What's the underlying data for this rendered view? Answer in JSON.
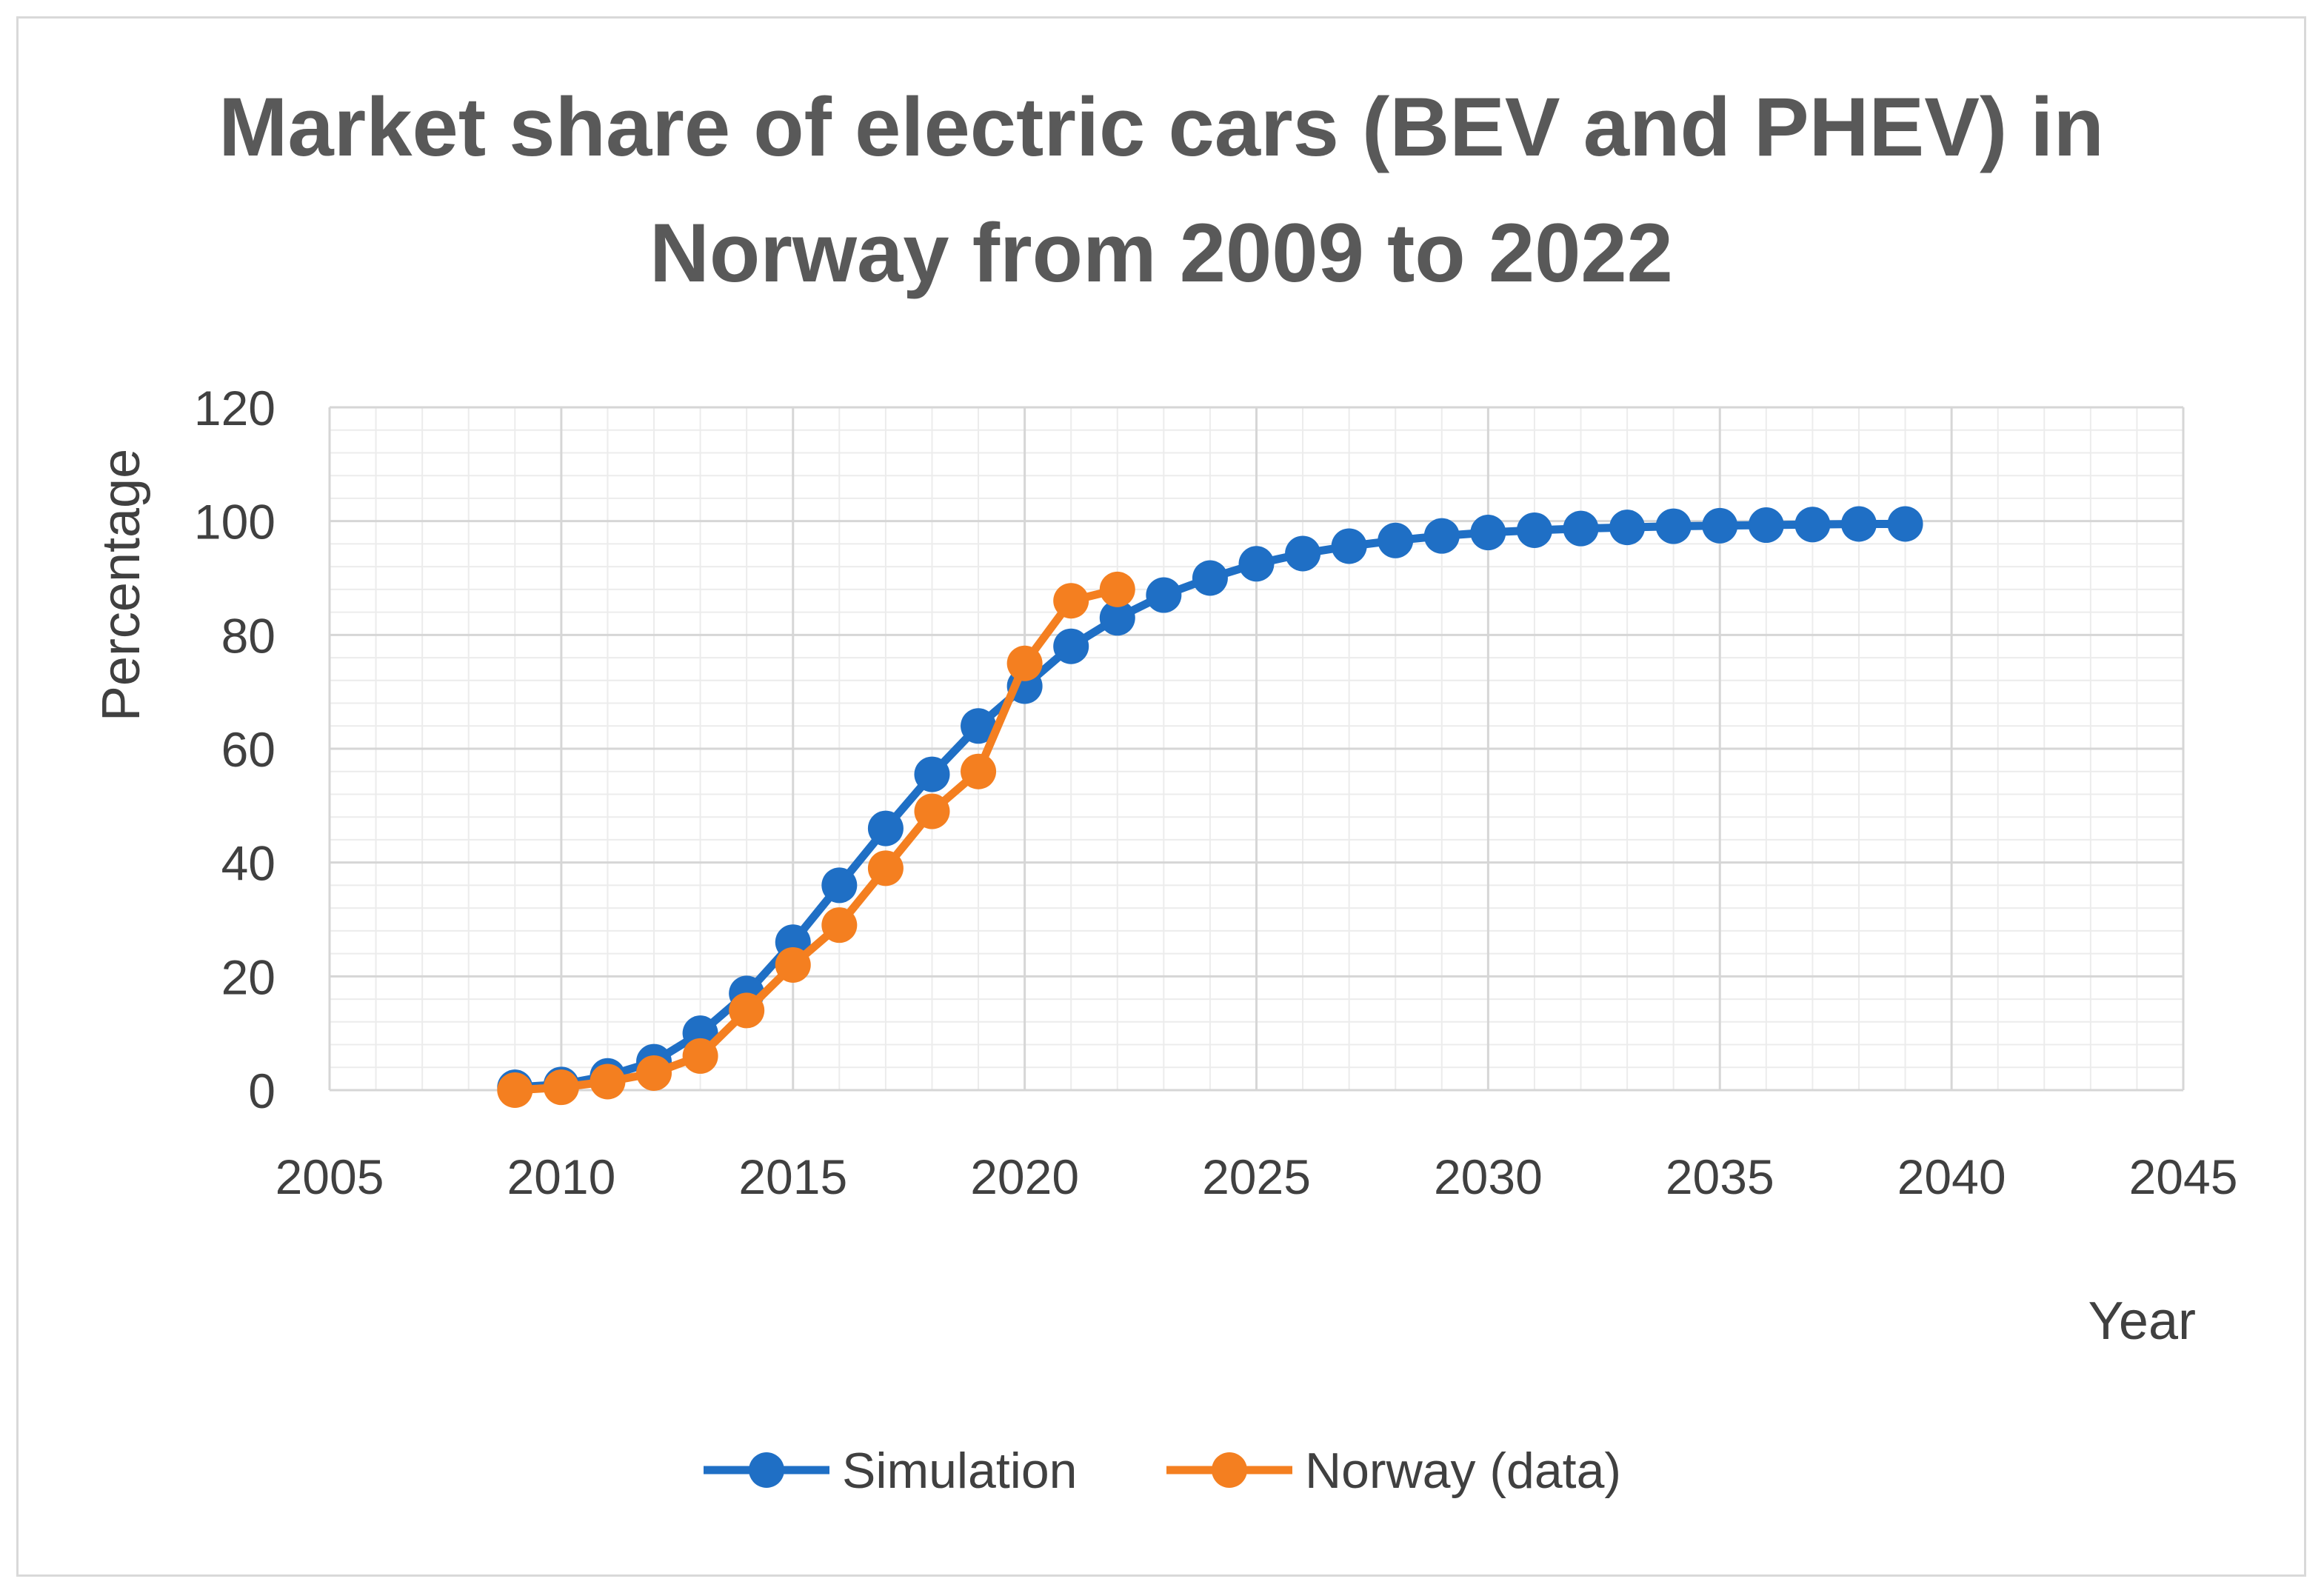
{
  "chart_data": {
    "type": "line",
    "title": "Market share of electric cars (BEV and PHEV) in Norway from 2009 to 2022",
    "title_lines": [
      "Market share of electric cars (BEV and PHEV) in",
      "Norway from 2009 to 2022"
    ],
    "xlabel": "Year",
    "ylabel": "Percentage",
    "xlim": [
      2005,
      2045
    ],
    "ylim": [
      0,
      120
    ],
    "x_ticks": [
      2005,
      2010,
      2015,
      2020,
      2025,
      2030,
      2035,
      2040,
      2045
    ],
    "y_ticks": [
      0,
      20,
      40,
      60,
      80,
      100,
      120
    ],
    "grid": true,
    "legend_position": "bottom",
    "series": [
      {
        "name": "Simulation",
        "color": "#1f6fc5",
        "x": [
          2009,
          2010,
          2011,
          2012,
          2013,
          2014,
          2015,
          2016,
          2017,
          2018,
          2019,
          2020,
          2021,
          2022,
          2023,
          2024,
          2025,
          2026,
          2027,
          2028,
          2029,
          2030,
          2031,
          2032,
          2033,
          2034,
          2035,
          2036,
          2037,
          2038,
          2039
        ],
        "values": [
          0.5,
          1,
          2.5,
          5,
          10,
          17,
          26,
          36,
          46,
          55.5,
          64,
          71,
          78,
          83,
          87,
          90,
          92.5,
          94.3,
          95.6,
          96.6,
          97.4,
          98,
          98.4,
          98.7,
          98.9,
          99.1,
          99.2,
          99.3,
          99.4,
          99.5,
          99.5
        ]
      },
      {
        "name": "Norway (data)",
        "color": "#f47f20",
        "x": [
          2009,
          2010,
          2011,
          2012,
          2013,
          2014,
          2015,
          2016,
          2017,
          2018,
          2019,
          2020,
          2021,
          2022
        ],
        "values": [
          0,
          0.5,
          1.5,
          3,
          6,
          14,
          22,
          29,
          39,
          49,
          56,
          75,
          86,
          88
        ]
      }
    ]
  }
}
